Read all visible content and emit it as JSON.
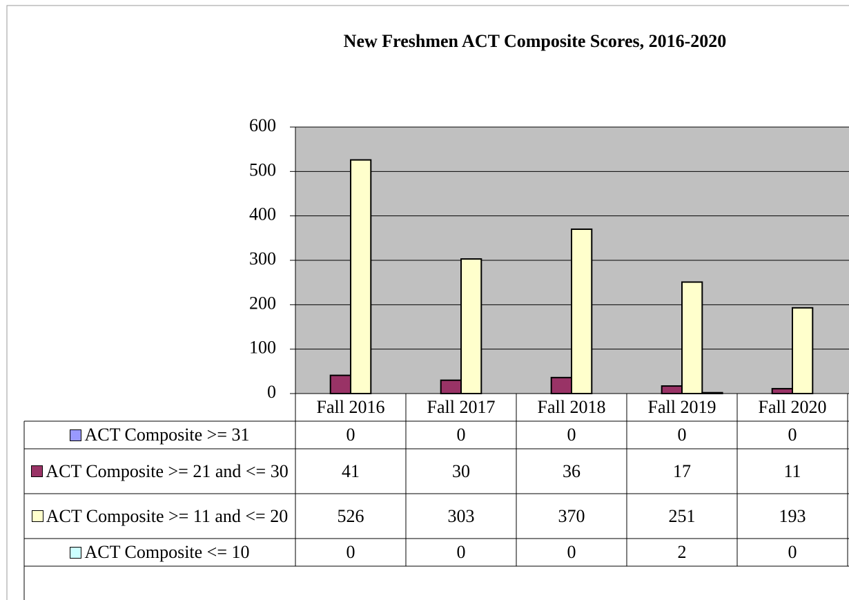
{
  "chart_data": {
    "type": "bar",
    "title": "New Freshmen ACT Composite Scores, 2016-2020",
    "categories": [
      "Fall 2016",
      "Fall 2017",
      "Fall 2018",
      "Fall 2019",
      "Fall 2020"
    ],
    "series": [
      {
        "name": "ACT Composite >= 31",
        "color": "#9999ff",
        "values": [
          0,
          0,
          0,
          0,
          0
        ]
      },
      {
        "name": "ACT Composite >= 21 and <= 30",
        "color": "#993366",
        "values": [
          41,
          30,
          36,
          17,
          11
        ]
      },
      {
        "name": "ACT Composite >= 11 and <= 20",
        "color": "#ffffcc",
        "values": [
          526,
          303,
          370,
          251,
          193
        ]
      },
      {
        "name": "ACT Composite <= 10",
        "color": "#ccffff",
        "values": [
          0,
          0,
          0,
          2,
          0
        ]
      }
    ],
    "ylim": [
      0,
      600
    ],
    "yticks": [
      0,
      100,
      200,
      300,
      400,
      500,
      600
    ],
    "grid": true,
    "plot_background": "#c0c0c0"
  }
}
